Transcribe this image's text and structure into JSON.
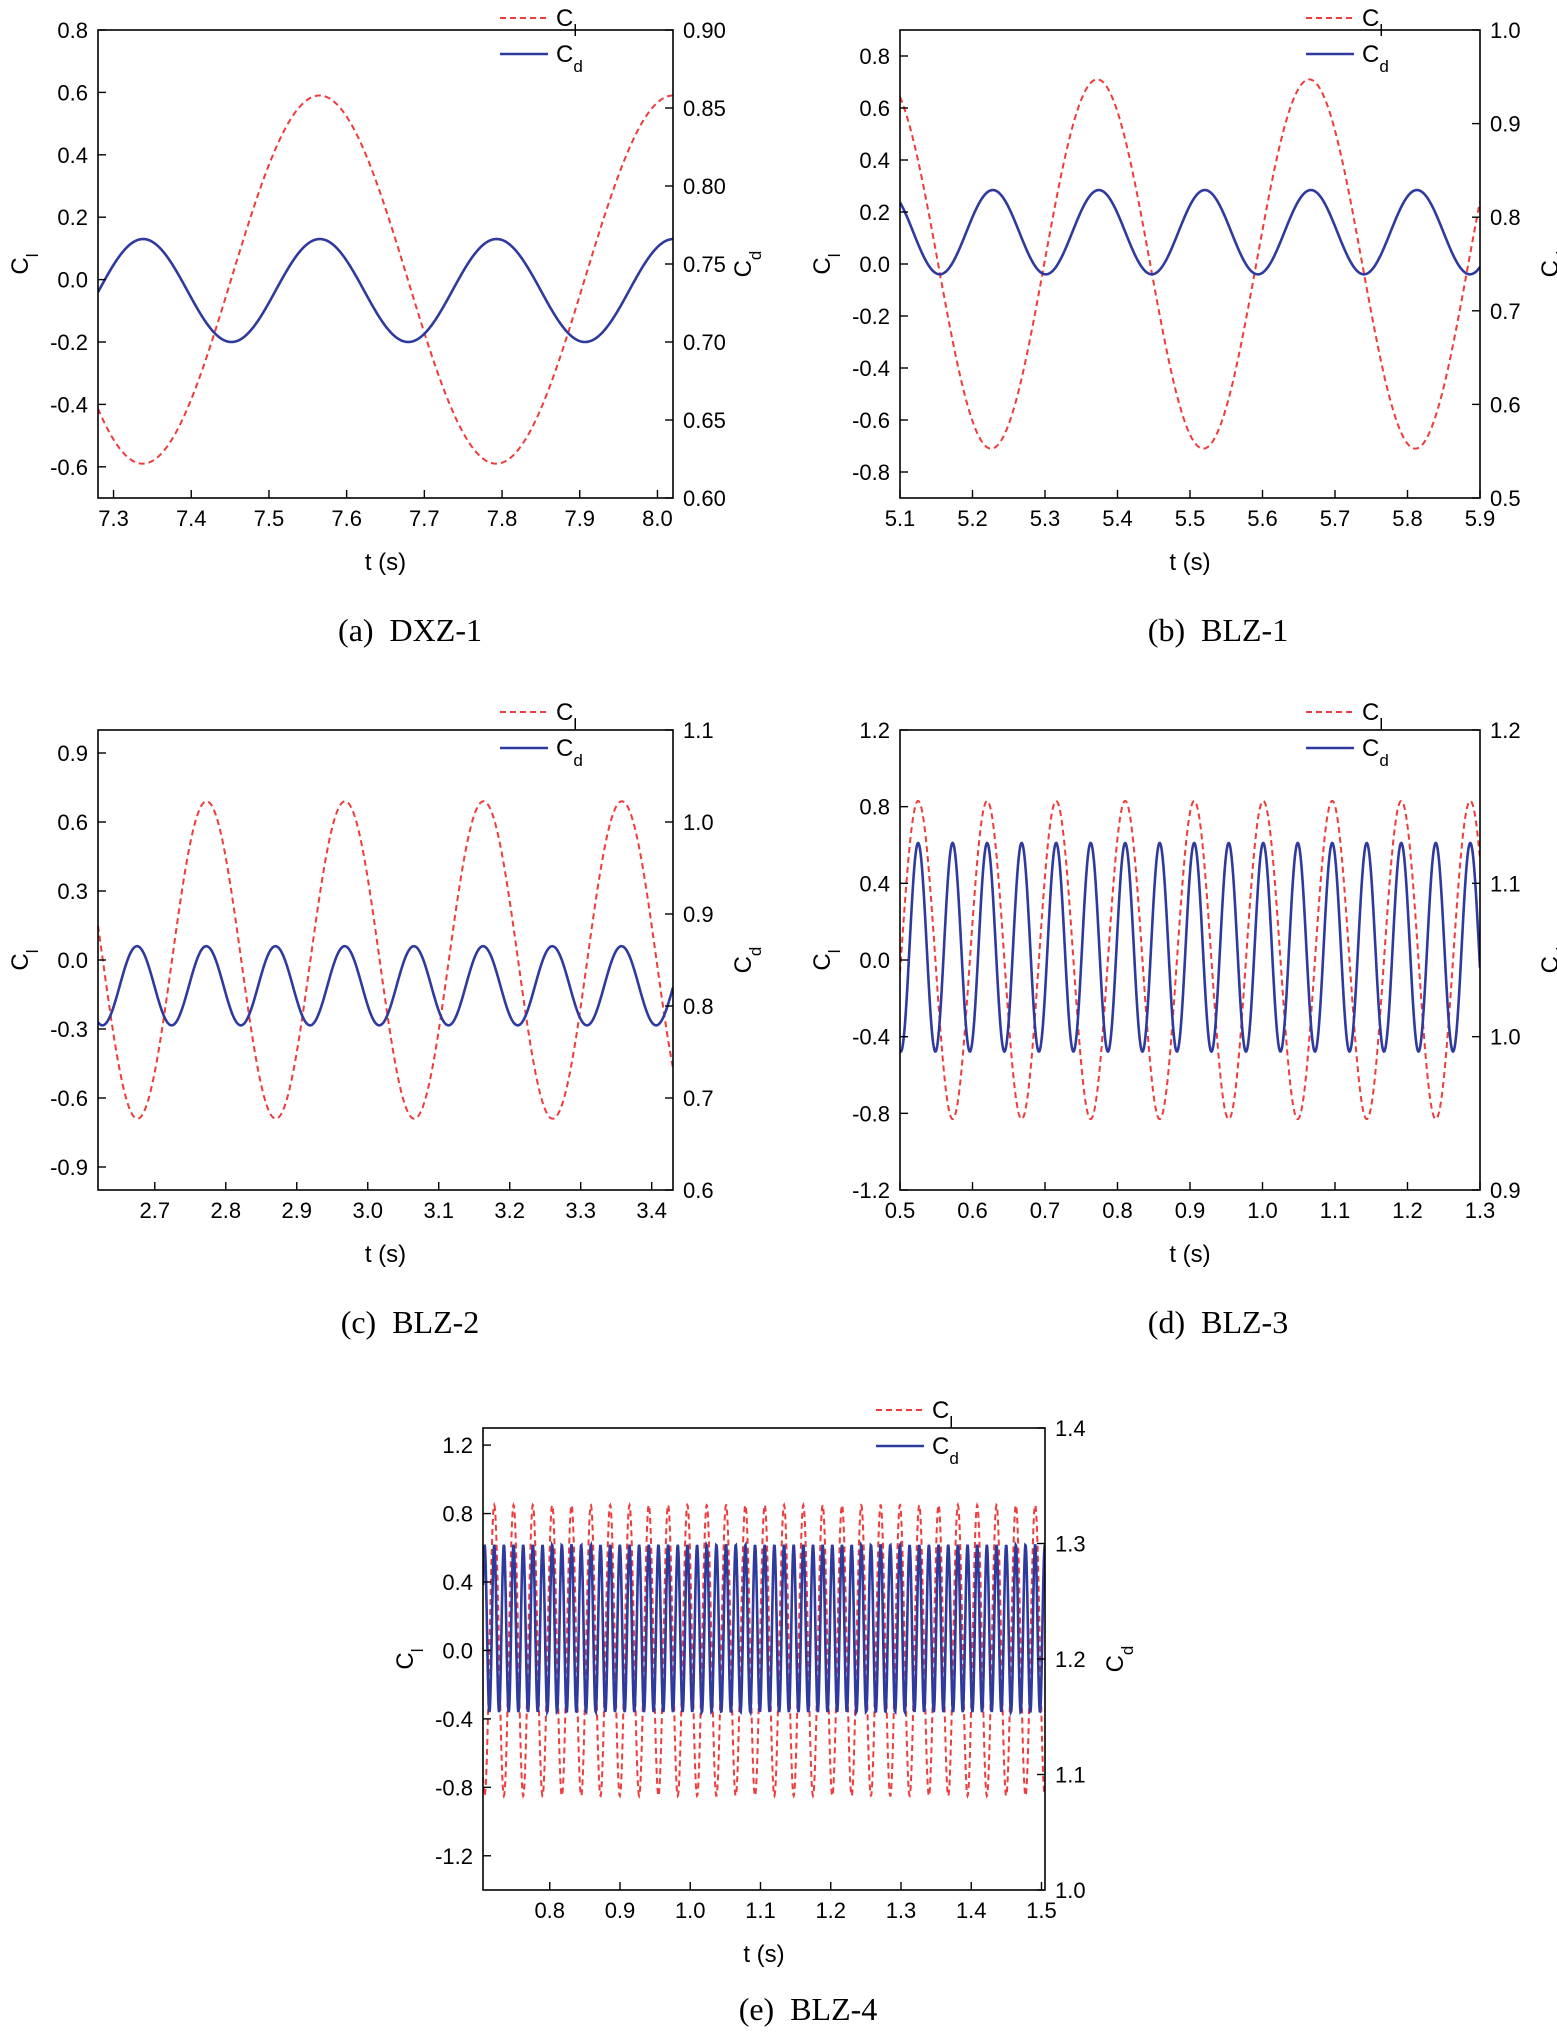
{
  "colors": {
    "cl": "#ee3b3b",
    "cd": "#2e3a9e",
    "axis": "#000000"
  },
  "chart_data": [
    {
      "type": "line",
      "caption": "(a)  DXZ-1",
      "xlabel": "t (s)",
      "ylabel_left": {
        "base": "C",
        "sub": "l"
      },
      "ylabel_right": {
        "base": "C",
        "sub": "d"
      },
      "xlim": [
        7.28,
        8.02
      ],
      "ylim_left": [
        -0.7,
        0.8
      ],
      "ylim_right": [
        0.6,
        0.9
      ],
      "x_ticks": [
        "7.3",
        "7.4",
        "7.5",
        "7.6",
        "7.7",
        "7.8",
        "7.9",
        "8.0"
      ],
      "y_ticks_left": [
        "-0.6",
        "-0.4",
        "-0.2",
        "0.0",
        "0.2",
        "0.4",
        "0.6",
        "0.8"
      ],
      "y_ticks_right": [
        "0.60",
        "0.65",
        "0.70",
        "0.75",
        "0.80",
        "0.85",
        "0.90"
      ],
      "legend": [
        {
          "label": "C",
          "sub": "l",
          "style": "dashed"
        },
        {
          "label": "C",
          "sub": "d",
          "style": "solid"
        }
      ],
      "series": [
        {
          "name": "Cl",
          "axis": "left",
          "style": "dashed",
          "amplitude": 0.59,
          "mean": 0.0,
          "period": 0.455,
          "peak_t": 7.565
        },
        {
          "name": "Cd",
          "axis": "right",
          "style": "solid",
          "amplitude": 0.033,
          "mean": 0.733,
          "period": 0.2275,
          "peak_t": 7.338
        }
      ]
    },
    {
      "type": "line",
      "caption": "(b)  BLZ-1",
      "xlabel": "t (s)",
      "ylabel_left": {
        "base": "C",
        "sub": "l"
      },
      "ylabel_right": {
        "base": "C",
        "sub": "d"
      },
      "xlim": [
        5.1,
        5.9
      ],
      "ylim_left": [
        -0.9,
        0.9
      ],
      "ylim_right": [
        0.5,
        1.0
      ],
      "x_ticks": [
        "5.1",
        "5.2",
        "5.3",
        "5.4",
        "5.5",
        "5.6",
        "5.7",
        "5.8",
        "5.9"
      ],
      "y_ticks_left": [
        "-0.8",
        "-0.6",
        "-0.4",
        "-0.2",
        "0.0",
        "0.2",
        "0.4",
        "0.6",
        "0.8"
      ],
      "y_ticks_right": [
        "0.5",
        "0.6",
        "0.7",
        "0.8",
        "0.9",
        "1.0"
      ],
      "legend": [
        {
          "label": "C",
          "sub": "l",
          "style": "dashed"
        },
        {
          "label": "C",
          "sub": "d",
          "style": "solid"
        }
      ],
      "series": [
        {
          "name": "Cl",
          "axis": "left",
          "style": "dashed",
          "amplitude": 0.71,
          "mean": 0.0,
          "period": 0.2925,
          "peak_t": 5.372
        },
        {
          "name": "Cd",
          "axis": "right",
          "style": "solid",
          "amplitude": 0.045,
          "mean": 0.784,
          "period": 0.14625,
          "peak_t": 5.228
        }
      ]
    },
    {
      "type": "line",
      "caption": "(c)  BLZ-2",
      "xlabel": "t (s)",
      "ylabel_left": {
        "base": "C",
        "sub": "l"
      },
      "ylabel_right": {
        "base": "C",
        "sub": "d"
      },
      "xlim": [
        2.62,
        3.43
      ],
      "ylim_left": [
        -1.0,
        1.0
      ],
      "ylim_right": [
        0.6,
        1.1
      ],
      "x_ticks": [
        "2.7",
        "2.8",
        "2.9",
        "3.0",
        "3.1",
        "3.2",
        "3.3",
        "3.4"
      ],
      "y_ticks_left": [
        "-0.9",
        "-0.6",
        "-0.3",
        "0.0",
        "0.3",
        "0.6",
        "0.9"
      ],
      "y_ticks_right": [
        "0.6",
        "0.7",
        "0.8",
        "0.9",
        "1.0",
        "1.1"
      ],
      "legend": [
        {
          "label": "C",
          "sub": "l",
          "style": "dashed"
        },
        {
          "label": "C",
          "sub": "d",
          "style": "solid"
        }
      ],
      "series": [
        {
          "name": "Cl",
          "axis": "left",
          "style": "dashed",
          "amplitude": 0.69,
          "mean": 0.0,
          "period": 0.195,
          "peak_t": 2.773
        },
        {
          "name": "Cd",
          "axis": "right",
          "style": "solid",
          "amplitude": 0.043,
          "mean": 0.822,
          "period": 0.0975,
          "peak_t": 2.675
        }
      ]
    },
    {
      "type": "line",
      "caption": "(d)  BLZ-3",
      "xlabel": "t (s)",
      "ylabel_left": {
        "base": "C",
        "sub": "l"
      },
      "ylabel_right": {
        "base": "C",
        "sub": "d"
      },
      "xlim": [
        0.5,
        1.3
      ],
      "ylim_left": [
        -1.2,
        1.2
      ],
      "ylim_right": [
        0.9,
        1.2
      ],
      "x_ticks": [
        "0.5",
        "0.6",
        "0.7",
        "0.8",
        "0.9",
        "1.0",
        "1.1",
        "1.2",
        "1.3"
      ],
      "y_ticks_left": [
        "-1.2",
        "-0.8",
        "-0.4",
        "0.0",
        "0.4",
        "0.8",
        "1.2"
      ],
      "y_ticks_right": [
        "0.9",
        "1.0",
        "1.1",
        "1.2"
      ],
      "legend": [
        {
          "label": "C",
          "sub": "l",
          "style": "dashed"
        },
        {
          "label": "C",
          "sub": "d",
          "style": "solid"
        }
      ],
      "series": [
        {
          "name": "Cl",
          "axis": "left",
          "style": "dashed",
          "amplitude": 0.83,
          "mean": 0.0,
          "period": 0.0952,
          "peak_t": 0.525
        },
        {
          "name": "Cd",
          "axis": "right",
          "style": "solid",
          "amplitude": 0.068,
          "mean": 1.0583,
          "period": 0.0476,
          "peak_t": 0.525
        }
      ]
    },
    {
      "type": "line",
      "caption": "(e)  BLZ-4",
      "xlabel": "t (s)",
      "ylabel_left": {
        "base": "C",
        "sub": "l"
      },
      "ylabel_right": {
        "base": "C",
        "sub": "d"
      },
      "xlim": [
        0.705,
        1.505
      ],
      "ylim_left": [
        -1.4,
        1.3
      ],
      "ylim_right": [
        1.0,
        1.4
      ],
      "x_ticks": [
        "0.8",
        "0.9",
        "1.0",
        "1.1",
        "1.2",
        "1.3",
        "1.4",
        "1.5"
      ],
      "y_ticks_left": [
        "-1.2",
        "-0.8",
        "-0.4",
        "0.0",
        "0.4",
        "0.8",
        "1.2"
      ],
      "y_ticks_right": [
        "1.0",
        "1.1",
        "1.2",
        "1.3",
        "1.4"
      ],
      "legend": [
        {
          "label": "C",
          "sub": "l",
          "style": "dashed"
        },
        {
          "label": "C",
          "sub": "d",
          "style": "solid"
        }
      ],
      "series": [
        {
          "name": "Cl",
          "axis": "left",
          "style": "dashed",
          "amplitude": 0.85,
          "mean": 0.0,
          "period": 0.0275,
          "peak_t": 0.721
        },
        {
          "name": "Cd",
          "axis": "right",
          "style": "solid",
          "amplitude": 0.0725,
          "mean": 1.2265,
          "period": 0.01375,
          "peak_t": 0.721
        }
      ]
    }
  ]
}
